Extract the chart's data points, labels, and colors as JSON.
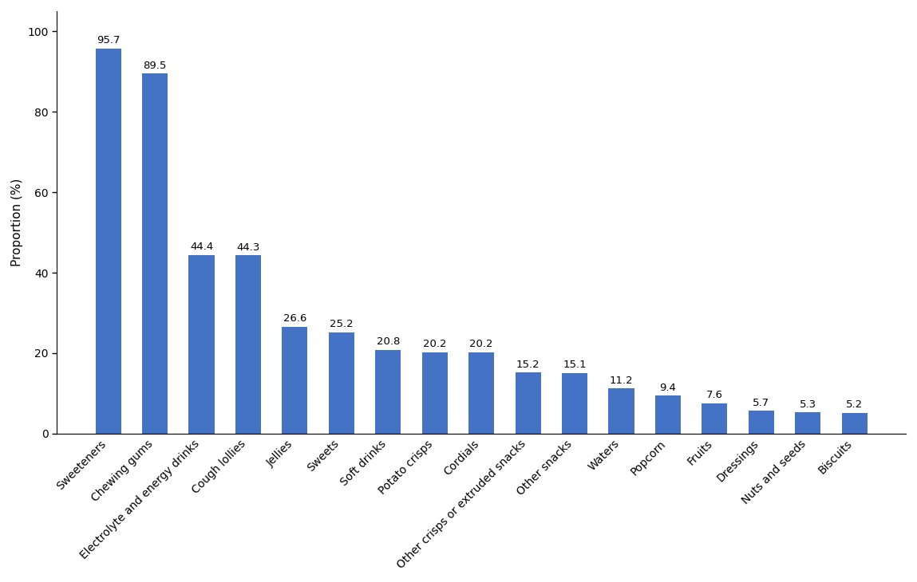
{
  "categories": [
    "Sweeteners",
    "Chewing gums",
    "Electrolyte and energy drinks",
    "Cough lollies",
    "Jellies",
    "Sweets",
    "Soft drinks",
    "Potato crisps",
    "Cordials",
    "Other crisps or extruded snacks",
    "Other snacks",
    "Waters",
    "Popcorn",
    "Fruits",
    "Dressings",
    "Nuts and seeds",
    "Biscuits"
  ],
  "values": [
    95.7,
    89.5,
    44.4,
    44.3,
    26.6,
    25.2,
    20.8,
    20.2,
    20.2,
    15.2,
    15.1,
    11.2,
    9.4,
    7.6,
    5.7,
    5.3,
    5.2
  ],
  "bar_color": "#4472c4",
  "ylabel": "Proportion (%)",
  "ylim": [
    0,
    105
  ],
  "yticks": [
    0,
    20,
    40,
    60,
    80,
    100
  ],
  "bar_width": 0.55,
  "label_fontsize": 9.5,
  "tick_label_fontsize": 10,
  "ylabel_fontsize": 11
}
